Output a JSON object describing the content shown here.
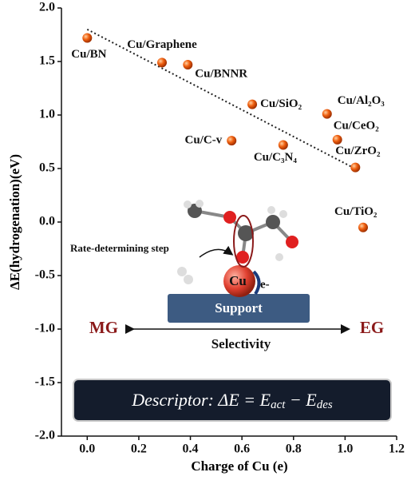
{
  "chart_data": {
    "type": "scatter",
    "xlabel": "Charge of Cu (e)",
    "ylabel": "ΔE(hydrogenation)(eV)",
    "xlim": [
      -0.1,
      1.2
    ],
    "ylim": [
      -2,
      2
    ],
    "xticks": [
      {
        "value": 0,
        "label": "0.0"
      },
      0.2,
      0.4,
      0.6,
      0.8,
      {
        "value": 1,
        "label": "1.0"
      },
      1.2
    ],
    "yticks": [
      {
        "value": -2,
        "label": "-2.0"
      },
      -1.5,
      {
        "value": -1,
        "label": "-1.0"
      },
      -0.5,
      {
        "value": 0,
        "label": "0.0"
      },
      0.5,
      {
        "value": 1,
        "label": "1.0"
      },
      1.5,
      {
        "value": 2,
        "label": "2.0"
      }
    ],
    "series": [
      {
        "color": "#f06010",
        "labels": [
          "Cu/BN",
          "Cu/Graphene",
          "Cu/BNNR",
          "Cu/SiO₂",
          "Cu/Al₂O₃",
          "Cu/CeO₂",
          "Cu/C-v",
          "Cu/C₃N₄",
          "Cu/ZrO₂",
          "Cu/TiO₂"
        ],
        "x": [
          0.0,
          0.29,
          0.39,
          0.64,
          0.93,
          0.97,
          0.56,
          0.76,
          1.04,
          1.07
        ],
        "values": [
          1.72,
          1.49,
          1.47,
          1.1,
          1.01,
          0.77,
          0.76,
          0.72,
          0.51,
          -0.05
        ]
      }
    ],
    "trendline": {
      "x": [
        0.0,
        1.03
      ],
      "values": [
        1.8,
        0.51
      ]
    },
    "inset": {
      "step": "Rate-determining step",
      "metal": "Cu",
      "electron": "e-",
      "support": "Support",
      "left": "MG",
      "right": "EG",
      "axis": "Selectivity",
      "descriptor": [
        "Descriptor: ΔE = E",
        "act",
        " − E",
        "des"
      ]
    }
  }
}
